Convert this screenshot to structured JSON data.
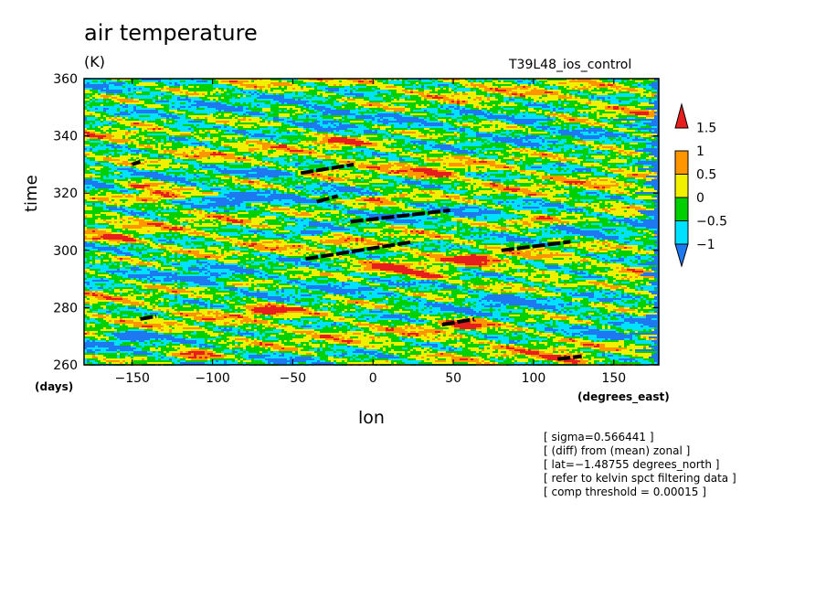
{
  "chart_data": {
    "type": "heatmap",
    "title": "air temperature",
    "subtitle": "(K)",
    "run_label": "T39L48_ios_control",
    "xlabel": "lon",
    "x_unit": "(degrees_east)",
    "ylabel": "time",
    "y_unit": "(days)",
    "xlim": [
      -180,
      178
    ],
    "ylim": [
      260,
      360
    ],
    "x_ticks": [
      -150,
      -100,
      -50,
      0,
      50,
      100,
      150
    ],
    "x_tick_labels": [
      "−150",
      "−100",
      "−50",
      "0",
      "50",
      "100",
      "150"
    ],
    "y_ticks": [
      260,
      280,
      300,
      320,
      340,
      360
    ],
    "y_tick_labels": [
      "260",
      "280",
      "300",
      "320",
      "340",
      "360"
    ],
    "colorbar": {
      "levels": [
        -1,
        -0.5,
        0,
        0.5,
        1,
        1.5
      ],
      "level_labels": [
        "−1",
        "−0.5",
        "0",
        "0.5",
        "1",
        "1.5"
      ],
      "colors": [
        "#1e78f0",
        "#00e0ff",
        "#00d000",
        "#f0f000",
        "#ff9600",
        "#e61e1e"
      ]
    },
    "anomalies": [
      {
        "lon": -132,
        "time": 319,
        "value": 1.6
      },
      {
        "lon": -145,
        "time": 323,
        "value": 1.4
      },
      {
        "lon": -160,
        "time": 304,
        "value": 1.3
      },
      {
        "lon": -65,
        "time": 279,
        "value": 1.5
      },
      {
        "lon": -110,
        "time": 263,
        "value": 1.4
      },
      {
        "lon": 10,
        "time": 294,
        "value": 1.6
      },
      {
        "lon": 32,
        "time": 291,
        "value": 1.5
      },
      {
        "lon": 55,
        "time": 274,
        "value": 1.4
      },
      {
        "lon": 62,
        "time": 297,
        "value": 1.3
      },
      {
        "lon": 100,
        "time": 310,
        "value": 1.3
      },
      {
        "lon": 5,
        "time": 318,
        "value": 1.4
      },
      {
        "lon": 40,
        "time": 327,
        "value": 1.3
      },
      {
        "lon": -20,
        "time": 338,
        "value": 1.2
      },
      {
        "lon": 120,
        "time": 262,
        "value": 1.3
      },
      {
        "lon": 155,
        "time": 332,
        "value": 1.2
      },
      {
        "lon": -60,
        "time": 327,
        "value": -1.4
      },
      {
        "lon": -85,
        "time": 318,
        "value": -1.3
      },
      {
        "lon": -40,
        "time": 306,
        "value": -1.3
      },
      {
        "lon": -105,
        "time": 290,
        "value": -1.2
      },
      {
        "lon": 80,
        "time": 283,
        "value": -1.3
      },
      {
        "lon": 130,
        "time": 290,
        "value": -1.2
      },
      {
        "lon": 150,
        "time": 270,
        "value": -1.3
      },
      {
        "lon": -150,
        "time": 270,
        "value": -1.2
      },
      {
        "lon": -30,
        "time": 348,
        "value": -1.2
      },
      {
        "lon": 100,
        "time": 346,
        "value": -1.3
      },
      {
        "lon": -120,
        "time": 343,
        "value": -1.2
      }
    ],
    "kelvin_segments": [
      {
        "lon": [
          -150,
          -145
        ],
        "time": [
          330,
          331
        ]
      },
      {
        "lon": [
          -45,
          -12
        ],
        "time": [
          327,
          330
        ]
      },
      {
        "lon": [
          -35,
          -22
        ],
        "time": [
          317,
          319
        ]
      },
      {
        "lon": [
          -14,
          48
        ],
        "time": [
          310,
          314
        ]
      },
      {
        "lon": [
          -42,
          25
        ],
        "time": [
          297,
          303
        ]
      },
      {
        "lon": [
          80,
          123
        ],
        "time": [
          300,
          303
        ]
      },
      {
        "lon": [
          -145,
          -135
        ],
        "time": [
          276,
          277
        ]
      },
      {
        "lon": [
          43,
          63
        ],
        "time": [
          274,
          276
        ]
      },
      {
        "lon": [
          115,
          130
        ],
        "time": [
          262,
          263
        ]
      }
    ]
  },
  "notes": [
    "[ sigma=0.566441 ]",
    "[ (diff) from (mean) zonal ]",
    "[ lat=−1.48755 degrees_north ]",
    "[ refer to kelvin spct filtering data ]",
    "[ comp threshold = 0.00015 ]"
  ]
}
